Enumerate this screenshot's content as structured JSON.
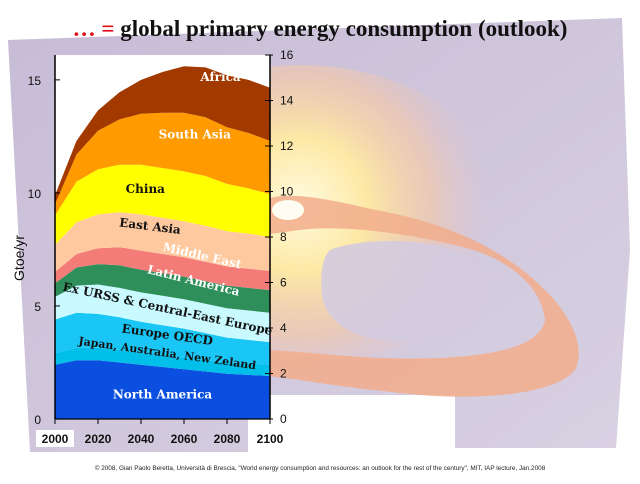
{
  "slide": {
    "title_dots": "… =",
    "title_text": "global primary energy consumption (outlook)",
    "credit": "© 2008, Gian Paolo Beretta, Università di Brescia, \"World energy consumption and resources: an outlook for the rest of the century\", MIT, IAP lecture, Jan.2008"
  },
  "colors": {
    "background_paper": "#cfc6dc",
    "flame_outer": "#f4b18e",
    "flame_inner": "#fff3b0"
  },
  "chart_data": {
    "type": "area",
    "stacked": true,
    "title": "",
    "xlabel": "",
    "ylabel": "Gtoe/yr",
    "x": [
      2000,
      2010,
      2020,
      2030,
      2040,
      2050,
      2060,
      2070,
      2080,
      2090,
      2100
    ],
    "x_ticks": [
      "2000",
      "2020",
      "2040",
      "2060",
      "2080",
      "2100"
    ],
    "xlim": [
      2000,
      2100
    ],
    "ylim_left": [
      0,
      16.1
    ],
    "yticks_left": [
      "0",
      "5",
      "10",
      "15"
    ],
    "ylim_right": [
      0,
      16
    ],
    "yticks_right": [
      "0",
      "2",
      "4",
      "6",
      "8",
      "10",
      "12",
      "14",
      "16"
    ],
    "grid": false,
    "legend": "inline labels",
    "series": [
      {
        "name": "North America",
        "color": "#0a4fe0",
        "values": [
          2.4,
          2.6,
          2.6,
          2.5,
          2.4,
          2.3,
          2.2,
          2.1,
          2.0,
          1.95,
          1.9
        ]
      },
      {
        "name": "Japan,  Australia, New Zeland",
        "color": "#00bfe8",
        "values": [
          0.5,
          0.55,
          0.55,
          0.55,
          0.5,
          0.5,
          0.5,
          0.5,
          0.5,
          0.5,
          0.5
        ]
      },
      {
        "name": "Europe OECD",
        "color": "#19c6f5",
        "values": [
          1.5,
          1.55,
          1.5,
          1.45,
          1.4,
          1.35,
          1.3,
          1.2,
          1.1,
          1.05,
          1.0
        ]
      },
      {
        "name": "Ex URSS & Central-East Europe",
        "color": "#c8faff",
        "values": [
          1.0,
          1.2,
          1.3,
          1.3,
          1.3,
          1.3,
          1.3,
          1.3,
          1.3,
          1.3,
          1.3
        ]
      },
      {
        "name": "Latin America",
        "color": "#2f8f5a",
        "values": [
          0.6,
          0.8,
          0.9,
          1.0,
          1.0,
          1.0,
          1.0,
          1.0,
          1.0,
          1.0,
          1.0
        ]
      },
      {
        "name": "Middle East",
        "color": "#f47c78",
        "values": [
          0.5,
          0.6,
          0.7,
          0.8,
          0.85,
          0.85,
          0.85,
          0.85,
          0.85,
          0.85,
          0.85
        ]
      },
      {
        "name": "East Asia",
        "color": "#ffc9a0",
        "values": [
          1.2,
          1.4,
          1.5,
          1.55,
          1.6,
          1.6,
          1.6,
          1.6,
          1.55,
          1.55,
          1.5
        ]
      },
      {
        "name": "China",
        "color": "#ffff00",
        "values": [
          1.3,
          1.8,
          2.0,
          2.1,
          2.2,
          2.2,
          2.2,
          2.2,
          2.1,
          2.0,
          1.9
        ]
      },
      {
        "name": "South Asia",
        "color": "#ff9a00",
        "values": [
          0.5,
          1.2,
          1.7,
          2.0,
          2.25,
          2.45,
          2.6,
          2.6,
          2.5,
          2.45,
          2.35
        ]
      },
      {
        "name": "Africa",
        "color": "#a23a00",
        "values": [
          0.4,
          0.6,
          0.9,
          1.2,
          1.5,
          1.8,
          2.05,
          2.2,
          2.3,
          2.35,
          2.35
        ]
      }
    ]
  }
}
